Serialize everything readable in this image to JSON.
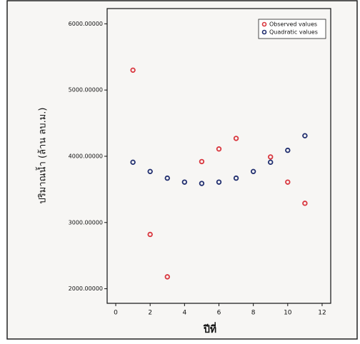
{
  "chart_data": {
    "type": "scatter",
    "x_label": "ปีที่",
    "y_label": "ปริมาณน้ำ (ล้าน ลบ.ม.)",
    "xlim": [
      -0.5,
      12.5
    ],
    "xticks": [
      0,
      2,
      4,
      6,
      8,
      10,
      12
    ],
    "ylim": [
      1780,
      6230
    ],
    "yticks": [
      {
        "value": 2000,
        "label": "2000.00000"
      },
      {
        "value": 3000,
        "label": "3000.00000"
      },
      {
        "value": 4000,
        "label": "4000.00000"
      },
      {
        "value": 5000,
        "label": "5000.00000"
      },
      {
        "value": 6000,
        "label": "6000.00000"
      }
    ],
    "legend": "top-right",
    "series": [
      {
        "name": "Observed values",
        "color": "#d9363e",
        "x": [
          1,
          2,
          3,
          5,
          6,
          7,
          9,
          10,
          11
        ],
        "values": [
          5300,
          2820,
          2180,
          3920,
          4110,
          4270,
          3990,
          3610,
          3290
        ]
      },
      {
        "name": "Quadratic values",
        "color": "#1f2d6e",
        "x": [
          1,
          2,
          3,
          4,
          5,
          6,
          7,
          8,
          9,
          10,
          11
        ],
        "values": [
          3910,
          3770,
          3670,
          3610,
          3590,
          3610,
          3670,
          3770,
          3910,
          4090,
          4310
        ]
      }
    ]
  }
}
